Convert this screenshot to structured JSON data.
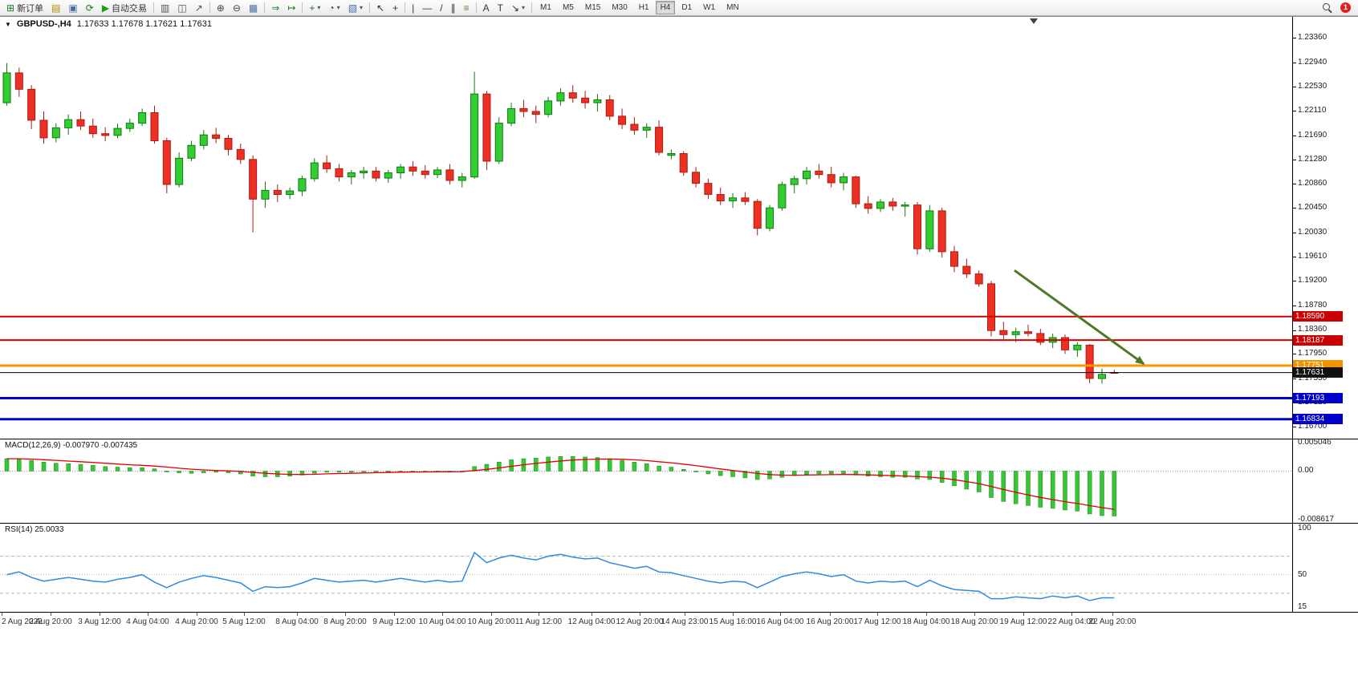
{
  "toolbar": {
    "groups": [
      [
        {
          "id": "new-order",
          "label": "新订单",
          "glyph": "⊞",
          "color": "#1c7c1c"
        },
        {
          "id": "market-depth",
          "glyph": "▤",
          "color": "#b08900"
        },
        {
          "id": "print",
          "glyph": "▣",
          "color": "#4a6fa5"
        },
        {
          "id": "refresh",
          "glyph": "⟳",
          "color": "#1c7c1c"
        },
        {
          "id": "algo-trading",
          "label": "自动交易",
          "glyph": "▶",
          "color": "#18a018"
        }
      ],
      [
        {
          "id": "bar-chart",
          "glyph": "▥",
          "color": "#555555"
        },
        {
          "id": "candlestick-chart",
          "glyph": "◫",
          "color": "#555555"
        },
        {
          "id": "line-chart",
          "glyph": "↗",
          "color": "#555555"
        }
      ],
      [
        {
          "id": "zoom-in",
          "glyph": "⊕",
          "color": "#444444"
        },
        {
          "id": "zoom-out",
          "glyph": "⊖",
          "color": "#444444"
        },
        {
          "id": "tile-windows",
          "glyph": "▦",
          "color": "#4a6fa5"
        }
      ],
      [
        {
          "id": "auto-scroll",
          "glyph": "⇒",
          "color": "#1c7c1c"
        },
        {
          "id": "chart-shift",
          "glyph": "↦",
          "color": "#1c7c1c"
        }
      ],
      [
        {
          "id": "indicators",
          "glyph": "+",
          "color": "#1c7c1c",
          "caret": true
        },
        {
          "id": "periods",
          "glyph": "◔",
          "color": "#444444",
          "caret": true
        },
        {
          "id": "templates",
          "glyph": "▧",
          "color": "#4a6fa5",
          "caret": true
        }
      ],
      [
        {
          "id": "cursor",
          "glyph": "↖",
          "color": "#333333"
        },
        {
          "id": "crosshair",
          "glyph": "+",
          "color": "#333333"
        }
      ],
      [
        {
          "id": "vertical-line",
          "glyph": "|",
          "color": "#333333"
        },
        {
          "id": "horizontal-line",
          "glyph": "—",
          "color": "#333333"
        },
        {
          "id": "trendline",
          "glyph": "/",
          "color": "#333333"
        },
        {
          "id": "equidistant-channel",
          "glyph": "∥",
          "color": "#333333"
        },
        {
          "id": "fibonacci",
          "glyph": "≡",
          "color": "#8a6d3b"
        }
      ],
      [
        {
          "id": "text",
          "glyph": "A",
          "color": "#333333"
        },
        {
          "id": "text-label",
          "glyph": "T",
          "color": "#333333"
        },
        {
          "id": "shapes",
          "glyph": "↘",
          "color": "#333333",
          "caret": true
        }
      ]
    ],
    "timeframes": [
      "M1",
      "M5",
      "M15",
      "M30",
      "H1",
      "H4",
      "D1",
      "W1",
      "MN"
    ],
    "active_timeframe": "H4",
    "right": [
      {
        "id": "search"
      },
      {
        "id": "notifications",
        "badge": "1"
      }
    ]
  },
  "chart": {
    "title": {
      "symbol": "GBPUSD-,H4",
      "ohlc": "1.17633 1.17678 1.17621 1.17631"
    }
  },
  "colors": {
    "bull": "#32cd32",
    "bull_stroke": "#0f7a0f",
    "bear": "#ee3024",
    "bear_stroke": "#a81d11",
    "macd_hist": "#36c636",
    "macd_hist_stroke": "#1b8a1b",
    "macd_signal": "#e00000",
    "rsi": "#2f8be0",
    "arrow": "#4e7a27"
  },
  "chart_data": {
    "main": {
      "type": "candlestick",
      "symbol": "GBPUSD",
      "timeframe": "H4",
      "price_axis": {
        "max": 1.2372,
        "min": 1.165,
        "ticks": [
          1.2336,
          1.2294,
          1.2253,
          1.2211,
          1.2169,
          1.2128,
          1.2086,
          1.2045,
          1.2003,
          1.1961,
          1.192,
          1.1878,
          1.1836,
          1.1795,
          1.1753,
          1.1712,
          1.167
        ]
      },
      "candles": [
        [
          1.2225,
          1.2293,
          1.222,
          1.2276
        ],
        [
          1.2276,
          1.2285,
          1.2235,
          1.2248
        ],
        [
          1.2248,
          1.2255,
          1.218,
          1.2195
        ],
        [
          1.2195,
          1.221,
          1.2155,
          1.2165
        ],
        [
          1.2165,
          1.219,
          1.2157,
          1.2182
        ],
        [
          1.2182,
          1.2205,
          1.217,
          1.2196
        ],
        [
          1.2196,
          1.221,
          1.2178,
          1.2185
        ],
        [
          1.2185,
          1.2198,
          1.2165,
          1.2172
        ],
        [
          1.2172,
          1.2183,
          1.2159,
          1.2169
        ],
        [
          1.2169,
          1.2189,
          1.2164,
          1.2181
        ],
        [
          1.2181,
          1.2198,
          1.2175,
          1.219
        ],
        [
          1.219,
          1.2215,
          1.2185,
          1.2208
        ],
        [
          1.2208,
          1.222,
          1.2155,
          1.216
        ],
        [
          1.216,
          1.2165,
          1.207,
          1.2085
        ],
        [
          1.2085,
          1.214,
          1.208,
          1.213
        ],
        [
          1.213,
          1.216,
          1.2125,
          1.2152
        ],
        [
          1.2152,
          1.2178,
          1.2145,
          1.217
        ],
        [
          1.217,
          1.2182,
          1.2156,
          1.2164
        ],
        [
          1.2164,
          1.217,
          1.2135,
          1.2145
        ],
        [
          1.2145,
          1.2155,
          1.212,
          1.2128
        ],
        [
          1.2128,
          1.2135,
          1.2003,
          1.206
        ],
        [
          1.206,
          1.209,
          1.2045,
          1.2075
        ],
        [
          1.2075,
          1.2085,
          1.2055,
          1.2068
        ],
        [
          1.2068,
          1.208,
          1.206,
          1.2074
        ],
        [
          1.2074,
          1.21,
          1.2065,
          1.2095
        ],
        [
          1.2095,
          1.213,
          1.209,
          1.2122
        ],
        [
          1.2122,
          1.2135,
          1.2105,
          1.2112
        ],
        [
          1.2112,
          1.212,
          1.209,
          1.2098
        ],
        [
          1.2098,
          1.211,
          1.2085,
          1.2105
        ],
        [
          1.2105,
          1.2115,
          1.2095,
          1.2108
        ],
        [
          1.2108,
          1.2115,
          1.209,
          1.2096
        ],
        [
          1.2096,
          1.211,
          1.2088,
          1.2105
        ],
        [
          1.2105,
          1.212,
          1.2095,
          1.2115
        ],
        [
          1.2115,
          1.2125,
          1.21,
          1.2108
        ],
        [
          1.2108,
          1.2118,
          1.2095,
          1.2102
        ],
        [
          1.2102,
          1.2115,
          1.2096,
          1.211
        ],
        [
          1.211,
          1.212,
          1.2085,
          1.2092
        ],
        [
          1.2092,
          1.2105,
          1.208,
          1.2098
        ],
        [
          1.2098,
          1.2278,
          1.2095,
          1.224
        ],
        [
          1.224,
          1.2245,
          1.211,
          1.2125
        ],
        [
          1.2125,
          1.22,
          1.212,
          1.219
        ],
        [
          1.219,
          1.2225,
          1.2185,
          1.2215
        ],
        [
          1.2215,
          1.223,
          1.22,
          1.221
        ],
        [
          1.221,
          1.222,
          1.219,
          1.2205
        ],
        [
          1.2205,
          1.2235,
          1.22,
          1.2228
        ],
        [
          1.2228,
          1.225,
          1.222,
          1.2242
        ],
        [
          1.2242,
          1.2255,
          1.2225,
          1.2233
        ],
        [
          1.2233,
          1.2245,
          1.2215,
          1.2225
        ],
        [
          1.2225,
          1.224,
          1.221,
          1.223
        ],
        [
          1.223,
          1.2238,
          1.2195,
          1.2202
        ],
        [
          1.2202,
          1.2215,
          1.218,
          1.2188
        ],
        [
          1.2188,
          1.22,
          1.217,
          1.2178
        ],
        [
          1.2178,
          1.219,
          1.2165,
          1.2183
        ],
        [
          1.2183,
          1.2195,
          1.2135,
          1.214
        ],
        [
          1.2135,
          1.2145,
          1.2128,
          1.2138
        ],
        [
          1.2138,
          1.2142,
          1.21,
          1.2106
        ],
        [
          1.2106,
          1.2115,
          1.208,
          1.2087
        ],
        [
          1.2087,
          1.2095,
          1.206,
          1.2068
        ],
        [
          1.2068,
          1.208,
          1.205,
          1.2057
        ],
        [
          1.2057,
          1.207,
          1.2045,
          1.2062
        ],
        [
          1.2062,
          1.2072,
          1.205,
          1.2056
        ],
        [
          1.2056,
          1.206,
          1.1998,
          1.201
        ],
        [
          1.201,
          1.205,
          1.2005,
          1.2045
        ],
        [
          1.2045,
          1.209,
          1.204,
          1.2085
        ],
        [
          1.2085,
          1.21,
          1.207,
          1.2095
        ],
        [
          1.2095,
          1.2115,
          1.2085,
          1.2108
        ],
        [
          1.2108,
          1.212,
          1.2095,
          1.2102
        ],
        [
          1.2102,
          1.2115,
          1.208,
          1.2088
        ],
        [
          1.2088,
          1.2105,
          1.2075,
          1.2098
        ],
        [
          1.2098,
          1.21,
          1.2045,
          1.2052
        ],
        [
          1.2052,
          1.2065,
          1.2035,
          1.2044
        ],
        [
          1.2044,
          1.206,
          1.2038,
          1.2055
        ],
        [
          1.2055,
          1.2062,
          1.204,
          1.2048
        ],
        [
          1.2048,
          1.2055,
          1.203,
          1.205
        ],
        [
          1.205,
          1.2055,
          1.1965,
          1.1975
        ],
        [
          1.1975,
          1.205,
          1.197,
          1.204
        ],
        [
          1.204,
          1.2045,
          1.196,
          1.197
        ],
        [
          1.197,
          1.198,
          1.1935,
          1.1945
        ],
        [
          1.1945,
          1.1958,
          1.1925,
          1.1932
        ],
        [
          1.1932,
          1.1938,
          1.191,
          1.1915
        ],
        [
          1.1915,
          1.192,
          1.1825,
          1.1835
        ],
        [
          1.1835,
          1.185,
          1.182,
          1.1828
        ],
        [
          1.1828,
          1.184,
          1.1815,
          1.1833
        ],
        [
          1.1833,
          1.1845,
          1.1825,
          1.183
        ],
        [
          1.183,
          1.1838,
          1.181,
          1.1815
        ],
        [
          1.1815,
          1.183,
          1.1805,
          1.1823
        ],
        [
          1.1823,
          1.1828,
          1.1795,
          1.1802
        ],
        [
          1.1802,
          1.1815,
          1.179,
          1.181
        ],
        [
          1.181,
          1.1812,
          1.1745,
          1.1753
        ],
        [
          1.1753,
          1.177,
          1.1744,
          1.176
        ],
        [
          1.17633,
          1.17678,
          1.17621,
          1.17631
        ]
      ],
      "hlines": [
        {
          "price": 1.1859,
          "label": "1.18590",
          "color": "#d60000",
          "badge": "#cc0000",
          "width": 2
        },
        {
          "price": 1.18187,
          "label": "1.18187",
          "color": "#d60000",
          "badge": "#cc0000",
          "width": 2
        },
        {
          "price": 1.17751,
          "label": "1.17751",
          "color": "#ff9800",
          "badge": "#ef9400",
          "width": 3
        },
        {
          "price": 1.17631,
          "label": "1.17631",
          "color": "#000000",
          "badge": "#111111",
          "width": 1
        },
        {
          "price": 1.17193,
          "label": "1.17193",
          "color": "#0000d0",
          "badge": "#0000cc",
          "width": 3
        },
        {
          "price": 1.16834,
          "label": "1.16834",
          "color": "#0000d0",
          "badge": "#0000cc",
          "width": 3
        }
      ],
      "arrow": {
        "x1": 0.785,
        "p1": 1.1938,
        "x2": 0.885,
        "p2": 1.1778
      },
      "shift_marker": 0.8
    },
    "macd": {
      "label": "MACD(12,26,9) -0.007970 -0.007435",
      "max": 0.005046,
      "min": -0.008617,
      "axis": [
        {
          "t": "0.005046",
          "v": 0.005046
        },
        {
          "t": "0.00",
          "v": 0
        },
        {
          "t": "-0.008617",
          "v": -0.008617
        }
      ],
      "histogram": [
        0.0022,
        0.0021,
        0.0019,
        0.0016,
        0.0014,
        0.0013,
        0.0012,
        0.001,
        0.0008,
        0.0007,
        0.0006,
        0.0006,
        0.0004,
        0,
        -0.0003,
        -0.0004,
        -0.0003,
        -0.0002,
        -0.0003,
        -0.0005,
        -0.0009,
        -0.001,
        -0.001,
        -0.0009,
        -0.0007,
        -0.0004,
        -0.0002,
        -0.0002,
        -0.0002,
        -0.0001,
        -0.0001,
        -0.0001,
        0,
        0,
        -0.0001,
        0,
        -0.0001,
        0,
        0.0008,
        0.0012,
        0.0016,
        0.002,
        0.0022,
        0.0023,
        0.0025,
        0.0026,
        0.0026,
        0.0025,
        0.0024,
        0.0022,
        0.0019,
        0.0016,
        0.0013,
        0.0009,
        0.0007,
        0.0003,
        -0.0001,
        -0.0005,
        -0.0008,
        -0.001,
        -0.0012,
        -0.0015,
        -0.0014,
        -0.0011,
        -0.0008,
        -0.0006,
        -0.0005,
        -0.0005,
        -0.0005,
        -0.0007,
        -0.0009,
        -0.001,
        -0.0011,
        -0.0011,
        -0.0014,
        -0.0015,
        -0.002,
        -0.0026,
        -0.0032,
        -0.0037,
        -0.0047,
        -0.0054,
        -0.0058,
        -0.0061,
        -0.0064,
        -0.0066,
        -0.0069,
        -0.0071,
        -0.0076,
        -0.0079,
        -0.00797
      ]
    },
    "rsi": {
      "label": "RSI(14) 25.0033",
      "max": 100,
      "min": 15,
      "levels": [
        70,
        50,
        30
      ],
      "axis": [
        {
          "t": "100",
          "v": 100
        },
        {
          "t": "50",
          "v": 50
        },
        {
          "t": "15",
          "v": 15
        }
      ],
      "values": [
        50,
        53,
        47,
        43,
        45,
        47,
        45,
        43,
        42,
        45,
        47,
        50,
        42,
        36,
        42,
        46,
        49,
        47,
        44,
        41,
        32,
        37,
        36,
        37,
        41,
        46,
        44,
        42,
        43,
        44,
        42,
        44,
        46,
        44,
        42,
        44,
        42,
        43,
        74,
        63,
        68,
        71,
        68,
        66,
        70,
        72,
        69,
        67,
        68,
        63,
        60,
        57,
        59,
        53,
        52,
        49,
        46,
        43,
        41,
        43,
        42,
        36,
        42,
        48,
        51,
        53,
        51,
        48,
        50,
        43,
        41,
        43,
        42,
        43,
        37,
        44,
        38,
        34,
        33,
        32,
        24,
        24,
        26,
        25,
        24,
        27,
        25,
        27,
        22,
        25,
        25.0033
      ]
    },
    "time_axis": [
      {
        "t": "2 Aug 2022",
        "x": 0.001
      },
      {
        "t": "2 Aug 20:00",
        "x": 0.039
      },
      {
        "t": "3 Aug 12:00",
        "x": 0.077
      },
      {
        "t": "4 Aug 04:00",
        "x": 0.114
      },
      {
        "t": "4 Aug 20:00",
        "x": 0.152
      },
      {
        "t": "5 Aug 12:00",
        "x": 0.189
      },
      {
        "t": "8 Aug 04:00",
        "x": 0.23
      },
      {
        "t": "8 Aug 20:00",
        "x": 0.267
      },
      {
        "t": "9 Aug 12:00",
        "x": 0.305
      },
      {
        "t": "10 Aug 04:00",
        "x": 0.342
      },
      {
        "t": "10 Aug 20:00",
        "x": 0.38
      },
      {
        "t": "11 Aug 12:00",
        "x": 0.417
      },
      {
        "t": "12 Aug 04:00",
        "x": 0.458
      },
      {
        "t": "12 Aug 20:00",
        "x": 0.495
      },
      {
        "t": "14 Aug 23:00",
        "x": 0.53
      },
      {
        "t": "15 Aug 16:00",
        "x": 0.567
      },
      {
        "t": "16 Aug 04:00",
        "x": 0.604
      },
      {
        "t": "16 Aug 20:00",
        "x": 0.642
      },
      {
        "t": "17 Aug 12:00",
        "x": 0.679
      },
      {
        "t": "18 Aug 04:00",
        "x": 0.717
      },
      {
        "t": "18 Aug 20:00",
        "x": 0.754
      },
      {
        "t": "19 Aug 12:00",
        "x": 0.792
      },
      {
        "t": "22 Aug 04:00",
        "x": 0.829
      },
      {
        "t": "22 Aug 20:00",
        "x": 0.861
      }
    ]
  }
}
